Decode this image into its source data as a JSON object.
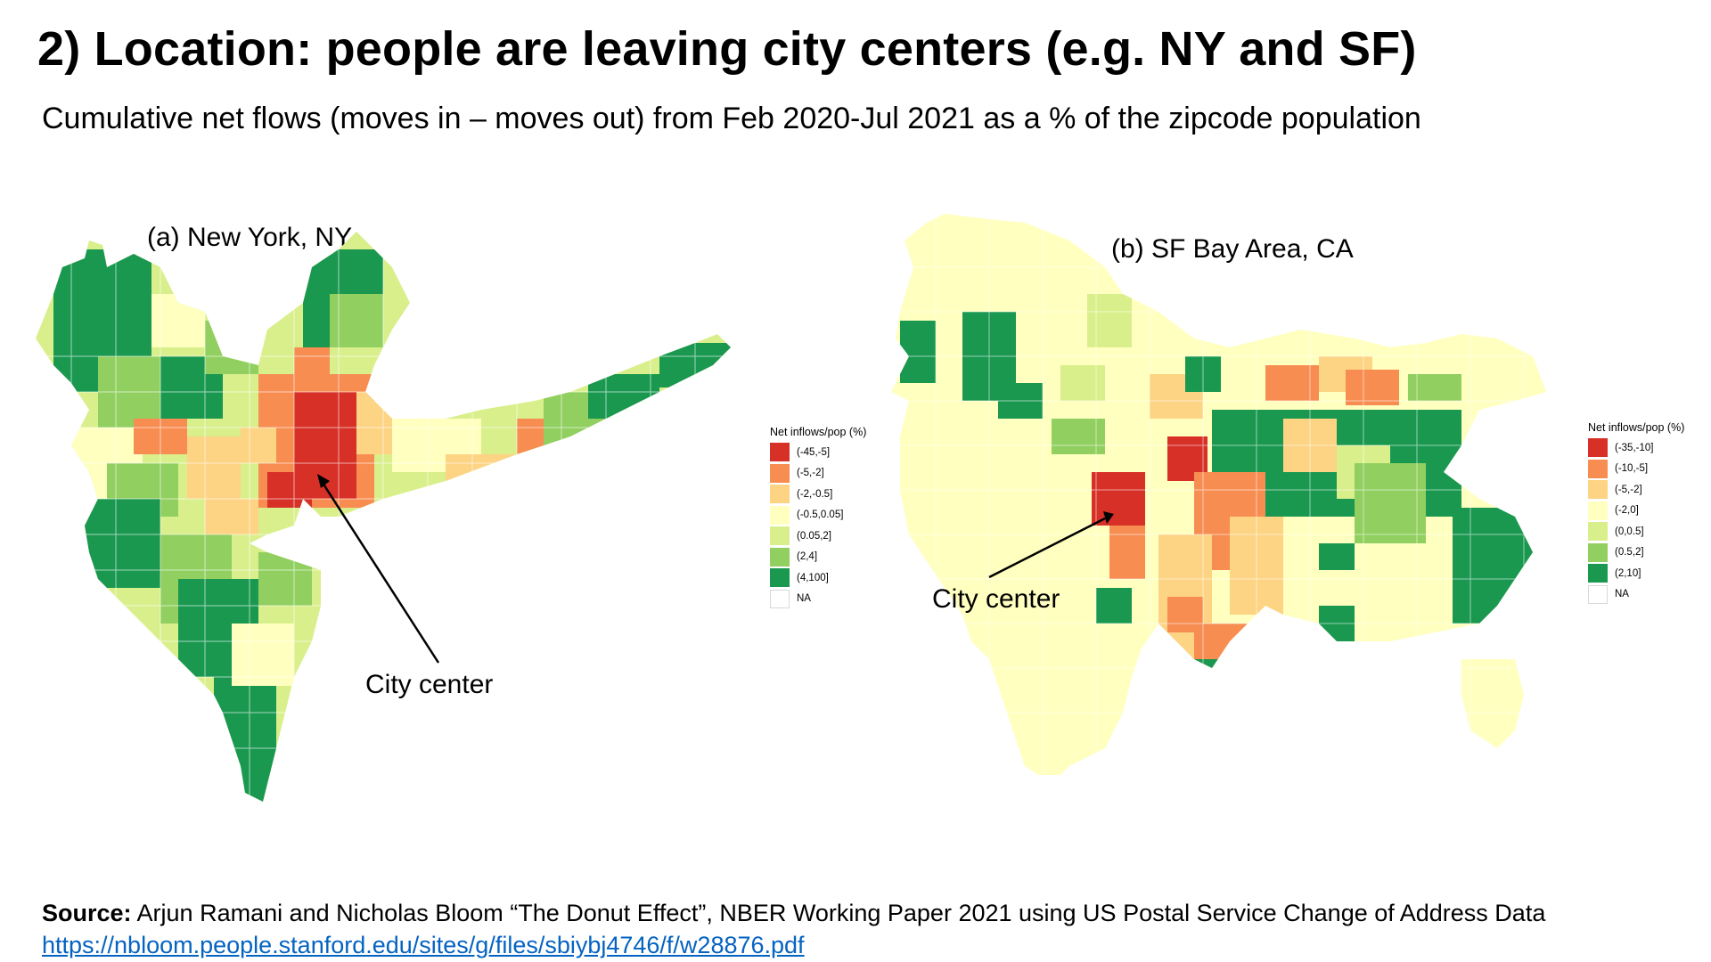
{
  "slide": {
    "title": "2) Location: people are leaving city centers (e.g. NY and SF)",
    "subtitle": "Cumulative net flows (moves in – moves out) from Feb 2020-Jul 2021 as a % of the zipcode population"
  },
  "maps": {
    "ny": {
      "panel_title": "(a) New York, NY",
      "callout": "City center",
      "legend": {
        "title": "Net inflows/pop (%)",
        "items": [
          {
            "label": "(-45,-5]",
            "color": "#d73027"
          },
          {
            "label": "(-5,-2]",
            "color": "#f88d52"
          },
          {
            "label": "(-2,-0.5]",
            "color": "#fdd384"
          },
          {
            "label": "(-0.5,0.05]",
            "color": "#ffffbf"
          },
          {
            "label": "(0.05,2]",
            "color": "#d9ef8b"
          },
          {
            "label": "(2,4]",
            "color": "#91cf60"
          },
          {
            "label": "(4,100]",
            "color": "#1a9850"
          },
          {
            "label": "NA",
            "color": "#ffffff"
          }
        ]
      }
    },
    "sf": {
      "panel_title": "(b) SF Bay Area, CA",
      "callout": "City center",
      "legend": {
        "title": "Net inflows/pop (%)",
        "items": [
          {
            "label": "(-35,-10]",
            "color": "#d73027"
          },
          {
            "label": "(-10,-5]",
            "color": "#f88d52"
          },
          {
            "label": "(-5,-2]",
            "color": "#fdd384"
          },
          {
            "label": "(-2,0]",
            "color": "#ffffbf"
          },
          {
            "label": "(0,0.5]",
            "color": "#d9ef8b"
          },
          {
            "label": "(0.5,2]",
            "color": "#91cf60"
          },
          {
            "label": "(2,10]",
            "color": "#1a9850"
          },
          {
            "label": "NA",
            "color": "#ffffff"
          }
        ]
      }
    }
  },
  "footer": {
    "source_label": "Source:",
    "source_text": " Arjun Ramani and Nicholas Bloom “The Donut Effect”, NBER Working Paper 2021 using US Postal Service Change of Address Data",
    "link_text": "https://nbloom.people.stanford.edu/sites/g/files/sbiybj4746/f/w28876.pdf"
  }
}
